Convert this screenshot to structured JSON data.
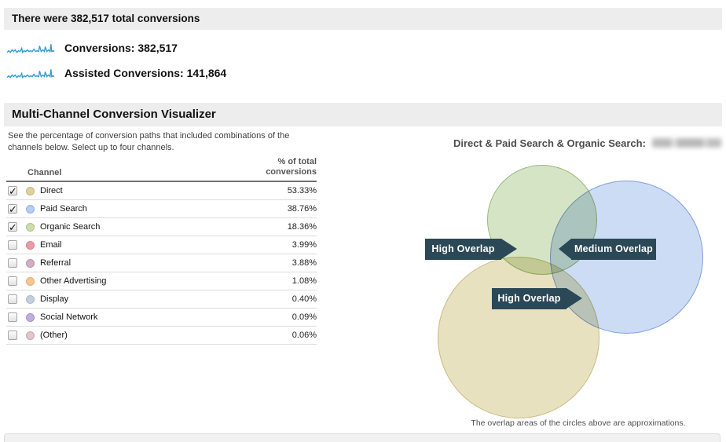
{
  "page": {
    "summary_header": "There were 382,517 total conversions",
    "metrics": [
      {
        "label": "Conversions:",
        "value": "382,517"
      },
      {
        "label": "Assisted Conversions:",
        "value": "141,864"
      }
    ],
    "section_title": "Multi-Channel Conversion Visualizer",
    "description_line1": "See the percentage of conversion paths that included combinations of the",
    "description_line2": "channels below. Select up to four channels.",
    "table": {
      "col_channel": "Channel",
      "col_percent_line1": "% of total",
      "col_percent_line2": "conversions",
      "rows": [
        {
          "channel": "Direct",
          "percent": "53.33%",
          "checked": true,
          "dot_fill": "#ded29c",
          "dot_border": "#c6b97e"
        },
        {
          "channel": "Paid Search",
          "percent": "38.76%",
          "checked": true,
          "dot_fill": "#b5cdf0",
          "dot_border": "#93b3e3"
        },
        {
          "channel": "Organic Search",
          "percent": "18.36%",
          "checked": true,
          "dot_fill": "#cedcae",
          "dot_border": "#b0c488"
        },
        {
          "channel": "Email",
          "percent": "3.99%",
          "checked": false,
          "dot_fill": "#eb9da6",
          "dot_border": "#dd7f8b"
        },
        {
          "channel": "Referral",
          "percent": "3.88%",
          "checked": false,
          "dot_fill": "#d0aec3",
          "dot_border": "#bd92ad"
        },
        {
          "channel": "Other Advertising",
          "percent": "1.08%",
          "checked": false,
          "dot_fill": "#f3c793",
          "dot_border": "#e6ad6d"
        },
        {
          "channel": "Display",
          "percent": "0.40%",
          "checked": false,
          "dot_fill": "#c4cfdc",
          "dot_border": "#a9b8ca"
        },
        {
          "channel": "Social Network",
          "percent": "0.09%",
          "checked": false,
          "dot_fill": "#bfafdc",
          "dot_border": "#a590cb"
        },
        {
          "channel": "(Other)",
          "percent": "0.06%",
          "checked": false,
          "dot_fill": "#dfc5cb",
          "dot_border": "#c9a7b0"
        }
      ]
    },
    "venn": {
      "title": "Direct & Paid Search & Organic Search:",
      "circles": [
        {
          "name": "Organic Search",
          "fill": "#d6e4c6",
          "border": "#9cb97c"
        },
        {
          "name": "Paid Search",
          "fill": "#ccdcf5",
          "border": "#7f9fd9"
        },
        {
          "name": "Direct",
          "fill": "#e8e1bf",
          "border": "#c9bc82"
        }
      ],
      "callouts": [
        {
          "label": "High Overlap"
        },
        {
          "label": "Medium Overlap"
        },
        {
          "label": "High Overlap"
        }
      ],
      "footnote": "The overlap areas of the circles above are approximations."
    },
    "colors": {
      "sparkline": "#2f9ad0",
      "callout_bg": "#2b4857"
    }
  }
}
